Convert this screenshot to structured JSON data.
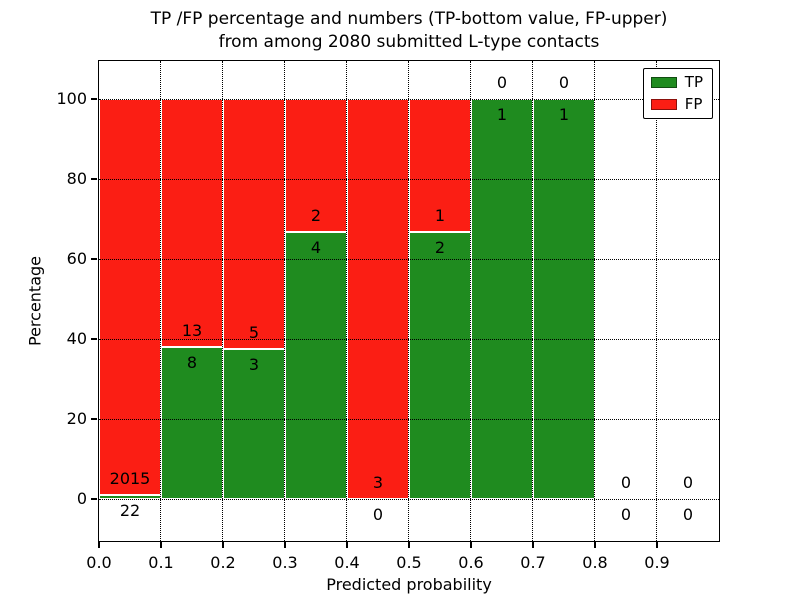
{
  "chart_data": {
    "type": "bar",
    "stacked": true,
    "title_line1": "TP /FP percentage and numbers (TP-bottom value, FP-upper)",
    "title_line2": "from among 2080 submitted L-type contacts",
    "xlabel": "Predicted probability",
    "ylabel": "Percentage",
    "xlim": [
      0.0,
      1.0
    ],
    "ylim": [
      -10.5,
      109.5
    ],
    "xticks": [
      {
        "value": 0.0,
        "label": "0.0"
      },
      {
        "value": 0.1,
        "label": "0.1"
      },
      {
        "value": 0.2,
        "label": "0.2"
      },
      {
        "value": 0.3,
        "label": "0.3"
      },
      {
        "value": 0.4,
        "label": "0.4"
      },
      {
        "value": 0.5,
        "label": "0.5"
      },
      {
        "value": 0.6,
        "label": "0.6"
      },
      {
        "value": 0.7,
        "label": "0.7"
      },
      {
        "value": 0.8,
        "label": "0.8"
      },
      {
        "value": 0.9,
        "label": "0.9"
      }
    ],
    "yticks": [
      {
        "value": 0,
        "label": "0"
      },
      {
        "value": 20,
        "label": "20"
      },
      {
        "value": 40,
        "label": "40"
      },
      {
        "value": 60,
        "label": "60"
      },
      {
        "value": 80,
        "label": "80"
      },
      {
        "value": 100,
        "label": "100"
      }
    ],
    "grid": "dotted",
    "legend_position": "upper-right",
    "legend": [
      {
        "label": "TP",
        "series": "tp"
      },
      {
        "label": "FP",
        "series": "fp"
      }
    ],
    "colors": {
      "tp": "#1f8b1f",
      "fp": "#fb1e14"
    },
    "total_contacts": 2080,
    "bin_width": 0.1,
    "bins": [
      {
        "range": [
          0.0,
          0.1
        ],
        "tp": 22,
        "fp": 2015,
        "tp_pct": 1.08,
        "fp_pct": 98.92
      },
      {
        "range": [
          0.1,
          0.2
        ],
        "tp": 8,
        "fp": 13,
        "tp_pct": 38.1,
        "fp_pct": 61.9
      },
      {
        "range": [
          0.2,
          0.3
        ],
        "tp": 3,
        "fp": 5,
        "tp_pct": 37.5,
        "fp_pct": 62.5
      },
      {
        "range": [
          0.3,
          0.4
        ],
        "tp": 4,
        "fp": 2,
        "tp_pct": 66.67,
        "fp_pct": 33.33
      },
      {
        "range": [
          0.4,
          0.5
        ],
        "tp": 0,
        "fp": 3,
        "tp_pct": 0,
        "fp_pct": 100
      },
      {
        "range": [
          0.5,
          0.6
        ],
        "tp": 2,
        "fp": 1,
        "tp_pct": 66.67,
        "fp_pct": 33.33
      },
      {
        "range": [
          0.6,
          0.7
        ],
        "tp": 1,
        "fp": 0,
        "tp_pct": 100,
        "fp_pct": 0
      },
      {
        "range": [
          0.7,
          0.8
        ],
        "tp": 1,
        "fp": 0,
        "tp_pct": 100,
        "fp_pct": 0
      },
      {
        "range": [
          0.8,
          0.9
        ],
        "tp": 0,
        "fp": 0,
        "tp_pct": null,
        "fp_pct": null
      },
      {
        "range": [
          0.9,
          1.0
        ],
        "tp": 0,
        "fp": 0,
        "tp_pct": null,
        "fp_pct": null
      }
    ]
  }
}
